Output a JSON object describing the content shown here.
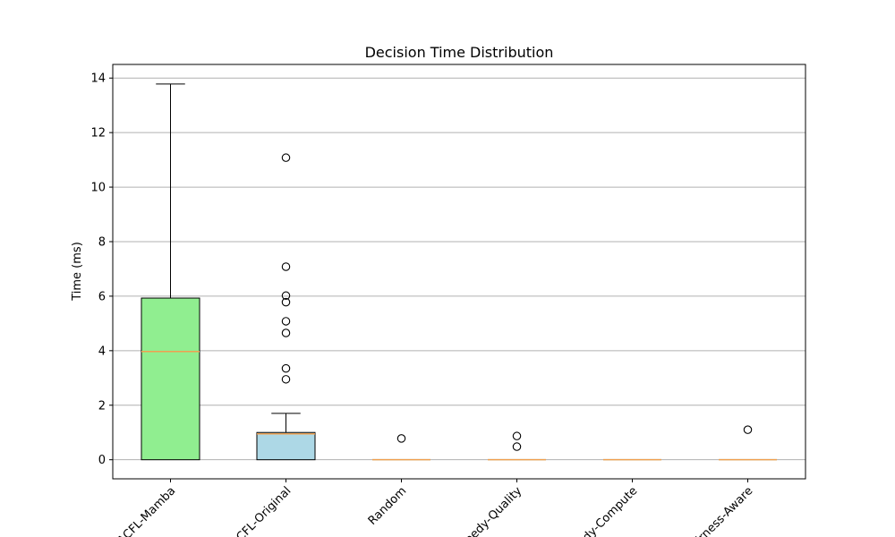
{
  "chart_data": {
    "type": "boxplot",
    "title": "Decision Time Distribution",
    "xlabel": "",
    "ylabel": "Time (ms)",
    "ylim": [
      -0.7,
      14.5
    ],
    "yticks": [
      0,
      2,
      4,
      6,
      8,
      10,
      12,
      14
    ],
    "grid": "y",
    "categories": [
      "ACFL-Mamba",
      "ACFL-Original",
      "Random",
      "Greedy-Quality",
      "Greedy-Compute",
      "Fairness-Aware"
    ],
    "boxes": [
      {
        "category": "ACFL-Mamba",
        "whisker_low": 0.0,
        "q1": 0.0,
        "median": 3.97,
        "q3": 5.93,
        "whisker_high": 13.78,
        "fliers": [],
        "color": "#90ee90"
      },
      {
        "category": "ACFL-Original",
        "whisker_low": 0.0,
        "q1": 0.0,
        "median": 0.95,
        "q3": 1.0,
        "whisker_high": 1.7,
        "fliers": [
          2.95,
          3.35,
          4.65,
          5.08,
          5.78,
          6.02,
          7.08,
          11.08
        ],
        "color": "#add8e6"
      },
      {
        "category": "Random",
        "whisker_low": 0.0,
        "q1": 0.0,
        "median": 0.0,
        "q3": 0.0,
        "whisker_high": 0.0,
        "fliers": [
          0.78
        ],
        "color": "#add8e6"
      },
      {
        "category": "Greedy-Quality",
        "whisker_low": 0.0,
        "q1": 0.0,
        "median": 0.0,
        "q3": 0.0,
        "whisker_high": 0.0,
        "fliers": [
          0.48,
          0.87
        ],
        "color": "#add8e6"
      },
      {
        "category": "Greedy-Compute",
        "whisker_low": 0.0,
        "q1": 0.0,
        "median": 0.0,
        "q3": 0.0,
        "whisker_high": 0.0,
        "fliers": [],
        "color": "#add8e6"
      },
      {
        "category": "Fairness-Aware",
        "whisker_low": 0.0,
        "q1": 0.0,
        "median": 0.0,
        "q3": 0.0,
        "whisker_high": 0.0,
        "fliers": [
          1.1
        ],
        "color": "#add8e6"
      }
    ],
    "median_color": "#f0a050",
    "grid_color": "#b0b0b0"
  }
}
